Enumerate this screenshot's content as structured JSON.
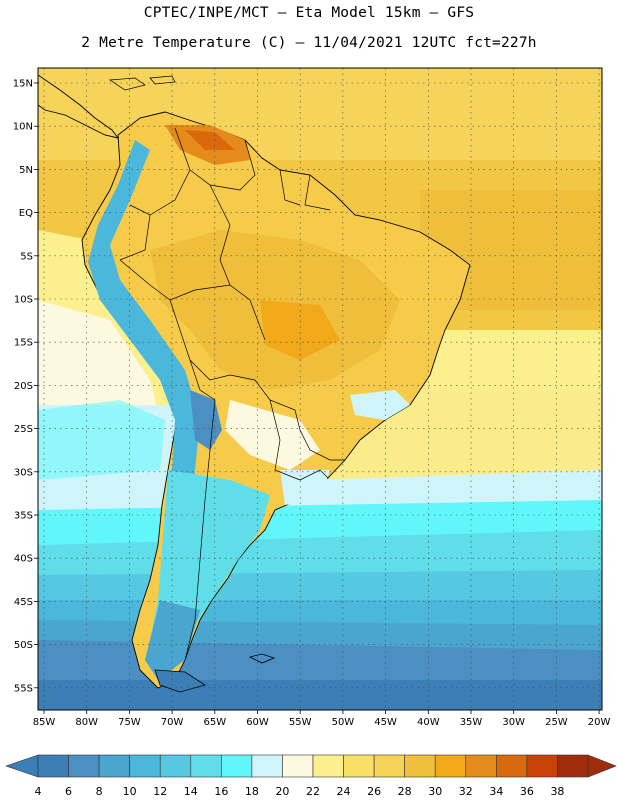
{
  "header": {
    "line1": "CPTEC/INPE/MCT –  Eta Model 15km – GFS",
    "line2": "2 Metre Temperature (C) – 11/04/2021 12UTC fct=227h"
  },
  "map": {
    "lat_labels": [
      "15N",
      "10N",
      "5N",
      "EQ",
      "5S",
      "10S",
      "15S",
      "20S",
      "25S",
      "30S",
      "35S",
      "40S",
      "45S",
      "50S",
      "55S"
    ],
    "lon_labels": [
      "85W",
      "80W",
      "75W",
      "70W",
      "65W",
      "60W",
      "55W",
      "50W",
      "45W",
      "40W",
      "35W",
      "30W",
      "25W",
      "20W"
    ]
  },
  "colorbar": {
    "labels": [
      "4",
      "6",
      "8",
      "10",
      "12",
      "14",
      "16",
      "18",
      "20",
      "22",
      "24",
      "26",
      "28",
      "30",
      "32",
      "34",
      "36",
      "38"
    ],
    "colors": [
      "#3c7fb7",
      "#4b8fc3",
      "#4aa6cf",
      "#4bb7da",
      "#55c9e2",
      "#5fdde8",
      "#61f7fa",
      "#cff5fb",
      "#fdf8e0",
      "#fbf08d",
      "#f8e067",
      "#f4d356",
      "#efc03c",
      "#f1a819",
      "#e48b1c",
      "#d9690a",
      "#c64206",
      "#a02c0e"
    ]
  }
}
